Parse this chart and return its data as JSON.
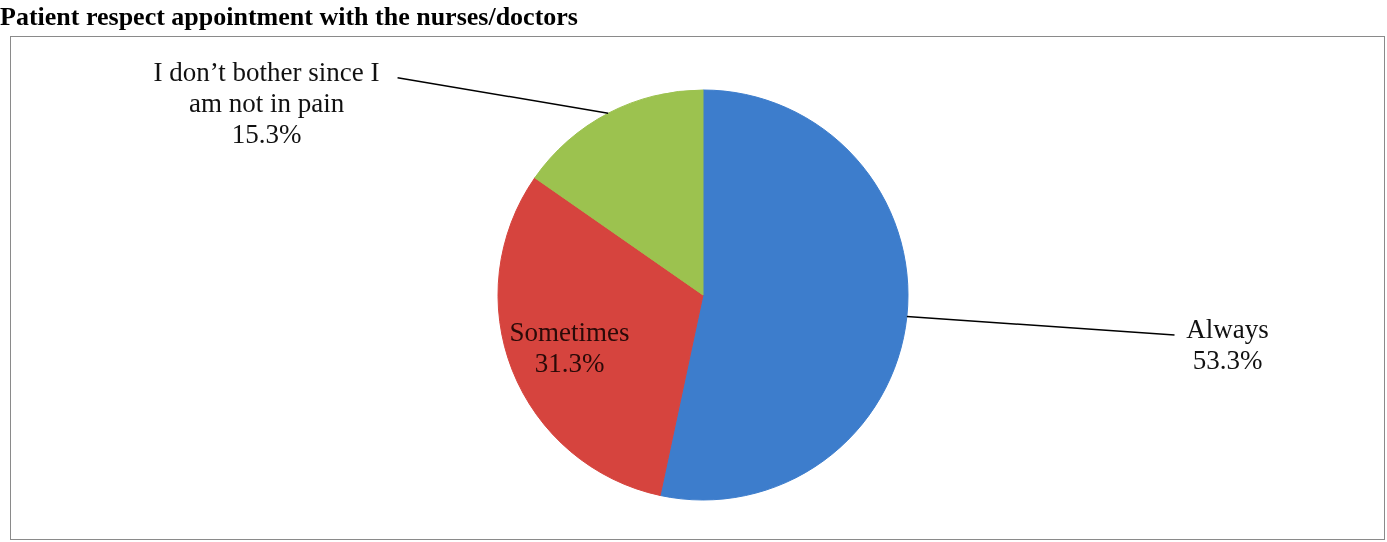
{
  "chart_data": {
    "type": "pie",
    "title": "Patient respect appointment with the nurses/doctors",
    "categories": [
      "Always",
      "Sometimes",
      "I don’t bother since I am not in pain"
    ],
    "values": [
      53.3,
      31.3,
      15.3
    ],
    "colors": [
      "#3d7dcc",
      "#d6443e",
      "#9cc24f"
    ],
    "value_labels": [
      "53.3%",
      "31.3%",
      "15.3%"
    ]
  }
}
